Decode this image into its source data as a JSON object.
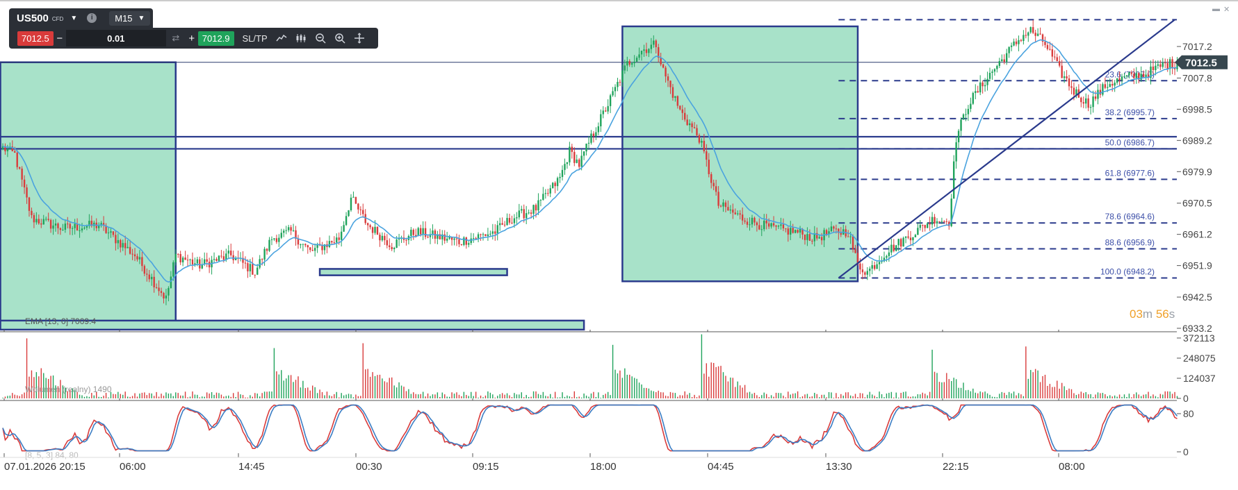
{
  "toolbar": {
    "symbol": "US500",
    "symbol_type": "CFD",
    "timeframe": "M15",
    "sell_price": "7012.5",
    "lot_size": "0.01",
    "buy_price": "7012.9",
    "sltp_label": "SL/TP",
    "icons": [
      "line-chart-icon",
      "candles-icon",
      "zoom-out-icon",
      "zoom-in-icon",
      "crosshair-icon"
    ]
  },
  "window_controls": {
    "minimize": "▬",
    "close": "✕"
  },
  "countdown": {
    "minutes": "03",
    "minutes_unit": "m",
    "seconds": "56",
    "seconds_unit": "s"
  },
  "colors": {
    "bull": "#1fa35b",
    "bear": "#d93b3b",
    "ema": "#4aa3df",
    "drawing": "#2a3a8c",
    "zone_fill": "#a8e2c9",
    "stoch_k": "#3b7dc4",
    "stoch_d": "#d93b3b"
  },
  "chart_data": [
    {
      "type": "candlestick",
      "instrument": "US500",
      "timeframe": "M15",
      "x_ticks": [
        "07.01.2026 20:15",
        "06:00",
        "14:45",
        "00:30",
        "09:15",
        "18:00",
        "04:45",
        "13:30",
        "22:15",
        "08:00"
      ],
      "y_ticks": [
        7017.2,
        7007.8,
        6998.5,
        6989.2,
        6979.9,
        6970.5,
        6961.2,
        6951.9,
        6942.5,
        6933.2
      ],
      "ylim": [
        6933.2,
        7025.2
      ],
      "current_price": "7012.5",
      "grid": false,
      "ohlc_anchors": [
        [
          0,
          6987
        ],
        [
          5,
          6985
        ],
        [
          12,
          6966
        ],
        [
          25,
          6963
        ],
        [
          40,
          6964
        ],
        [
          55,
          6955
        ],
        [
          62,
          6948
        ],
        [
          68,
          6942
        ],
        [
          72,
          6955
        ],
        [
          82,
          6952
        ],
        [
          95,
          6955
        ],
        [
          105,
          6950
        ],
        [
          112,
          6960
        ],
        [
          120,
          6962
        ],
        [
          128,
          6956
        ],
        [
          140,
          6960
        ],
        [
          145,
          6972
        ],
        [
          152,
          6964
        ],
        [
          162,
          6958
        ],
        [
          172,
          6962
        ],
        [
          190,
          6959
        ],
        [
          205,
          6962
        ],
        [
          212,
          6966
        ],
        [
          222,
          6969
        ],
        [
          232,
          6978
        ],
        [
          236,
          6986
        ],
        [
          240,
          6982
        ],
        [
          245,
          6990
        ],
        [
          252,
          7000
        ],
        [
          260,
          7012
        ],
        [
          266,
          7016
        ],
        [
          272,
          7018
        ],
        [
          275,
          7010
        ],
        [
          282,
          6998
        ],
        [
          290,
          6990
        ],
        [
          298,
          6970
        ],
        [
          308,
          6966
        ],
        [
          320,
          6963
        ],
        [
          330,
          6962
        ],
        [
          338,
          6960
        ],
        [
          345,
          6962
        ],
        [
          352,
          6962
        ],
        [
          356,
          6952
        ],
        [
          360,
          6950
        ],
        [
          368,
          6956
        ],
        [
          378,
          6961
        ],
        [
          388,
          6966
        ],
        [
          394,
          6965
        ],
        [
          397,
          6990
        ],
        [
          402,
          7000
        ],
        [
          410,
          7008
        ],
        [
          418,
          7015
        ],
        [
          424,
          7020
        ],
        [
          428,
          7022
        ],
        [
          434,
          7018
        ],
        [
          440,
          7010
        ],
        [
          446,
          7004
        ],
        [
          452,
          7000
        ],
        [
          460,
          7006
        ],
        [
          468,
          7008
        ],
        [
          476,
          7009
        ],
        [
          484,
          7012
        ]
      ],
      "ema": {
        "label": "EMA [13, 0] 7009.4"
      },
      "fibonacci": {
        "levels": [
          {
            "label": "23.6 (7007.0)",
            "value": 7007.0
          },
          {
            "label": "38.2 (6995.7)",
            "value": 6995.7
          },
          {
            "label": "50.0 (6986.7)",
            "value": 6986.7
          },
          {
            "label": "61.8 (6977.6)",
            "value": 6977.6
          },
          {
            "label": "78.6 (6964.6)",
            "value": 6964.6
          },
          {
            "label": "88.6 (6956.9)",
            "value": 6956.9
          },
          {
            "label": "100.0 (6948.2)",
            "value": 6948.2
          }
        ],
        "top": 7025.2
      },
      "horizontal_lines": [
        6990.3,
        6986.7
      ],
      "zones": [
        {
          "from_bar": -1,
          "to_bar": 72,
          "high": 7012.5,
          "low": 6935.2
        },
        {
          "from_bar": 258,
          "to_bar": 356,
          "high": 7023.2,
          "low": 6947.2
        },
        {
          "from_bar": 132,
          "to_bar": 210,
          "high": 6950.9,
          "low": 6949.0
        },
        {
          "from_bar": -1,
          "to_bar": 242,
          "high": 6935.5,
          "low": 6932.8
        }
      ],
      "trendline": {
        "from": [
          348,
          6948.2
        ],
        "to": [
          488,
          7025.2
        ]
      }
    },
    {
      "type": "bar",
      "name": "Wolumen (realny) 1490",
      "y_ticks": [
        372113,
        248075,
        124037,
        0
      ],
      "ylim": [
        0,
        372113
      ],
      "spikes": [
        {
          "bar": 10,
          "value": 370000
        },
        {
          "bar": 113,
          "value": 310000
        },
        {
          "bar": 150,
          "value": 340000
        },
        {
          "bar": 254,
          "value": 330000
        },
        {
          "bar": 291,
          "value": 395000
        },
        {
          "bar": 387,
          "value": 300000
        },
        {
          "bar": 426,
          "value": 320000
        }
      ],
      "note_text": ""
    },
    {
      "type": "line",
      "name": "[8, 5, 3] 84, 80",
      "y_ticks": [
        80,
        0
      ],
      "ylim": [
        -10,
        100
      ],
      "series": [
        {
          "name": "%K",
          "values_shape": "oscillating 0-100"
        },
        {
          "name": "%D",
          "values_shape": "oscillating 0-100"
        }
      ]
    }
  ]
}
